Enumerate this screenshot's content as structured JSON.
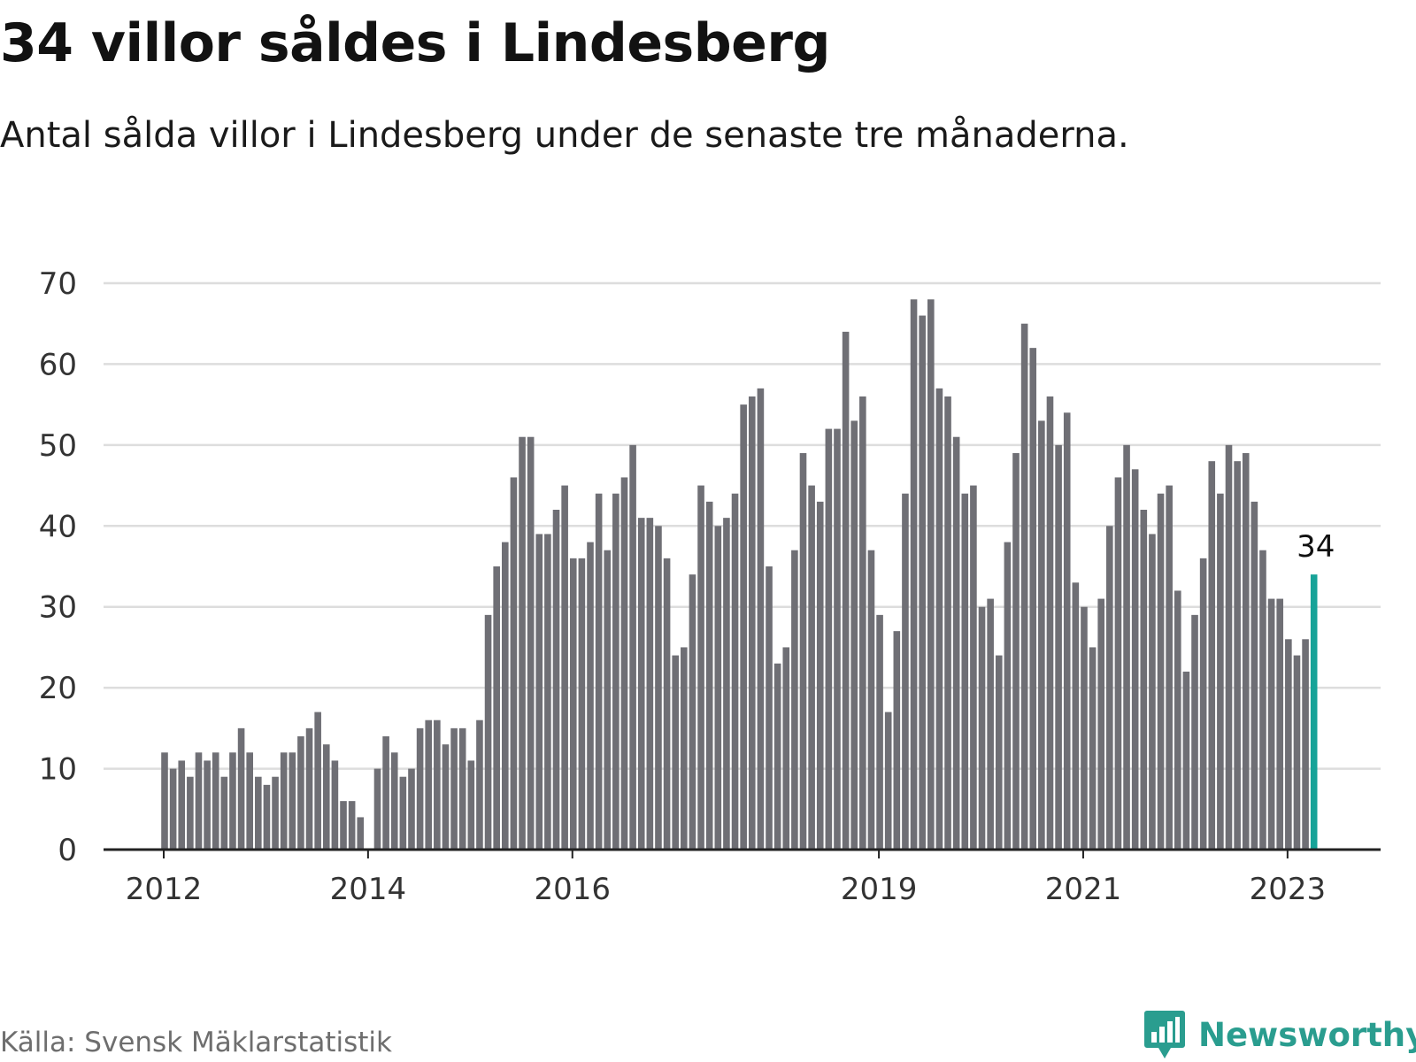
{
  "header": {
    "title": "34 villor såldes i Lindesberg",
    "subtitle": "Antal sålda villor i Lindesberg under de senaste tre månaderna."
  },
  "footer": {
    "source": "Källa: Svensk Mäklarstatistik",
    "brand": "Newsworthy",
    "brand_icon": "bar-chart-speech-bubble-icon"
  },
  "colors": {
    "bar": "#6f6f75",
    "highlight": "#17a398",
    "grid": "#dddddd",
    "axis": "#222222",
    "brand": "#2a9d8f"
  },
  "chart_data": {
    "type": "bar",
    "title": "34 villor såldes i Lindesberg",
    "subtitle": "Antal sålda villor i Lindesberg under de senaste tre månaderna.",
    "xlabel": "",
    "ylabel": "",
    "ylim": [
      0,
      70
    ],
    "yticks": [
      0,
      10,
      20,
      30,
      40,
      50,
      60,
      70
    ],
    "xtick_labels": [
      {
        "label": "2012",
        "index": 0
      },
      {
        "label": "2014",
        "index": 24
      },
      {
        "label": "2016",
        "index": 48
      },
      {
        "label": "2019",
        "index": 84
      },
      {
        "label": "2021",
        "index": 108
      },
      {
        "label": "2023",
        "index": 132
      }
    ],
    "grid": true,
    "legend": "none",
    "highlight_index": 135,
    "highlight_label": "34",
    "values": [
      12,
      10,
      11,
      9,
      12,
      11,
      12,
      9,
      12,
      15,
      12,
      9,
      8,
      9,
      12,
      12,
      14,
      15,
      17,
      13,
      11,
      6,
      6,
      4,
      0,
      10,
      14,
      12,
      9,
      10,
      15,
      16,
      16,
      13,
      15,
      15,
      11,
      16,
      29,
      35,
      38,
      46,
      51,
      51,
      39,
      39,
      42,
      45,
      36,
      36,
      38,
      44,
      37,
      44,
      46,
      50,
      41,
      41,
      40,
      36,
      24,
      25,
      34,
      45,
      43,
      40,
      41,
      44,
      55,
      56,
      57,
      35,
      23,
      25,
      37,
      49,
      45,
      43,
      52,
      52,
      64,
      53,
      56,
      37,
      29,
      17,
      27,
      44,
      68,
      66,
      68,
      57,
      56,
      51,
      44,
      45,
      30,
      31,
      24,
      38,
      49,
      65,
      62,
      53,
      56,
      50,
      54,
      33,
      30,
      25,
      31,
      40,
      46,
      50,
      47,
      42,
      39,
      44,
      45,
      32,
      22,
      29,
      36,
      48,
      44,
      50,
      48,
      49,
      43,
      37,
      31,
      31,
      26,
      24,
      26,
      34
    ]
  }
}
